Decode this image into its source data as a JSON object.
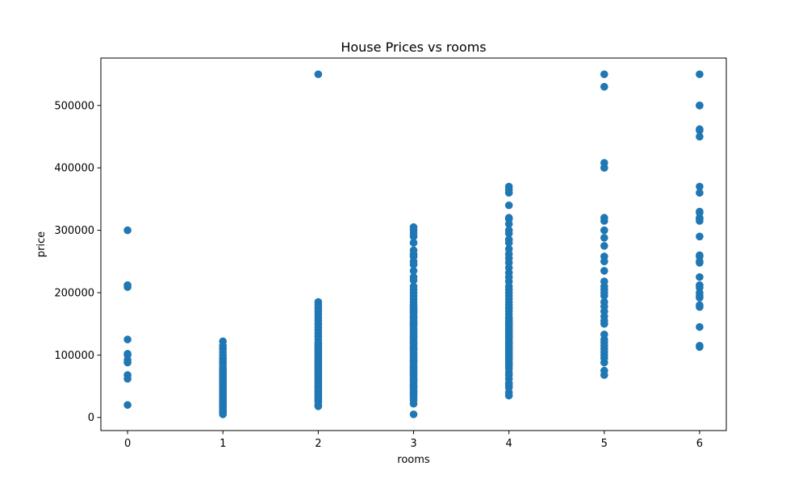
{
  "chart_data": {
    "type": "scatter",
    "title": "House Prices vs rooms",
    "xlabel": "rooms",
    "ylabel": "price",
    "xlim": [
      -0.28,
      6.28
    ],
    "ylim": [
      -21000,
      576000
    ],
    "xticks": [
      0,
      1,
      2,
      3,
      4,
      5,
      6
    ],
    "xtick_labels": [
      "0",
      "1",
      "2",
      "3",
      "4",
      "5",
      "6"
    ],
    "yticks": [
      0,
      100000,
      200000,
      300000,
      400000,
      500000
    ],
    "ytick_labels": [
      "0",
      "100000",
      "200000",
      "300000",
      "400000",
      "500000"
    ],
    "grid": false,
    "legend": "none",
    "marker_color": "#1f77b4",
    "series": [
      {
        "groups": [
          {
            "x": 0,
            "y": [
              20000,
              62000,
              68000,
              88000,
              92000,
              100000,
              102000,
              125000,
              209000,
              212000,
              300000
            ]
          },
          {
            "x": 1,
            "y": [
              5000,
              8000,
              10000,
              12000,
              15000,
              18000,
              20000,
              22000,
              25000,
              28000,
              30000,
              32000,
              35000,
              38000,
              40000,
              42000,
              45000,
              48000,
              50000,
              52000,
              55000,
              58000,
              60000,
              62000,
              65000,
              68000,
              70000,
              72000,
              75000,
              78000,
              80000,
              85000,
              88000,
              92000,
              95000,
              100000,
              105000,
              110000,
              115000,
              122000
            ]
          },
          {
            "x": 2,
            "y": [
              18000,
              20000,
              25000,
              28000,
              30000,
              32000,
              35000,
              38000,
              40000,
              42000,
              45000,
              48000,
              50000,
              52000,
              55000,
              58000,
              60000,
              62000,
              65000,
              68000,
              70000,
              72000,
              75000,
              78000,
              80000,
              82000,
              85000,
              88000,
              90000,
              92000,
              95000,
              98000,
              100000,
              102000,
              105000,
              108000,
              110000,
              112000,
              115000,
              118000,
              120000,
              125000,
              130000,
              135000,
              140000,
              145000,
              150000,
              155000,
              160000,
              165000,
              170000,
              175000,
              180000,
              185000,
              550000
            ]
          },
          {
            "x": 3,
            "y": [
              5000,
              22000,
              28000,
              32000,
              35000,
              38000,
              40000,
              42000,
              45000,
              48000,
              50000,
              52000,
              55000,
              58000,
              60000,
              62000,
              65000,
              68000,
              70000,
              72000,
              75000,
              78000,
              80000,
              82000,
              85000,
              88000,
              90000,
              92000,
              95000,
              98000,
              100000,
              102000,
              105000,
              108000,
              110000,
              112000,
              115000,
              118000,
              120000,
              122000,
              125000,
              128000,
              130000,
              132000,
              135000,
              138000,
              140000,
              142000,
              145000,
              148000,
              150000,
              152000,
              155000,
              158000,
              160000,
              162000,
              165000,
              168000,
              170000,
              172000,
              175000,
              178000,
              180000,
              185000,
              190000,
              195000,
              200000,
              205000,
              210000,
              220000,
              225000,
              235000,
              245000,
              250000,
              258000,
              262000,
              268000,
              280000,
              290000,
              295000,
              300000,
              305000
            ]
          },
          {
            "x": 4,
            "y": [
              35000,
              40000,
              48000,
              52000,
              55000,
              62000,
              68000,
              72000,
              78000,
              82000,
              85000,
              88000,
              92000,
              95000,
              98000,
              100000,
              102000,
              105000,
              108000,
              110000,
              112000,
              115000,
              118000,
              120000,
              122000,
              125000,
              128000,
              130000,
              132000,
              135000,
              138000,
              140000,
              142000,
              145000,
              148000,
              150000,
              152000,
              155000,
              158000,
              160000,
              165000,
              170000,
              175000,
              180000,
              185000,
              190000,
              195000,
              200000,
              205000,
              210000,
              218000,
              225000,
              232000,
              240000,
              248000,
              255000,
              262000,
              270000,
              280000,
              285000,
              295000,
              300000,
              310000,
              318000,
              320000,
              340000,
              360000,
              365000,
              370000
            ]
          },
          {
            "x": 5,
            "y": [
              68000,
              75000,
              88000,
              95000,
              100000,
              105000,
              110000,
              115000,
              120000,
              125000,
              133000,
              150000,
              155000,
              162000,
              170000,
              178000,
              185000,
              195000,
              200000,
              205000,
              210000,
              218000,
              235000,
              250000,
              258000,
              275000,
              288000,
              300000,
              315000,
              320000,
              400000,
              408000,
              530000,
              550000
            ]
          },
          {
            "x": 6,
            "y": [
              113000,
              115000,
              145000,
              177000,
              180000,
              192000,
              195000,
              200000,
              208000,
              212000,
              225000,
              248000,
              250000,
              258000,
              260000,
              290000,
              315000,
              318000,
              320000,
              328000,
              330000,
              360000,
              370000,
              450000,
              460000,
              462000,
              500000,
              500000,
              550000
            ]
          }
        ]
      }
    ]
  }
}
